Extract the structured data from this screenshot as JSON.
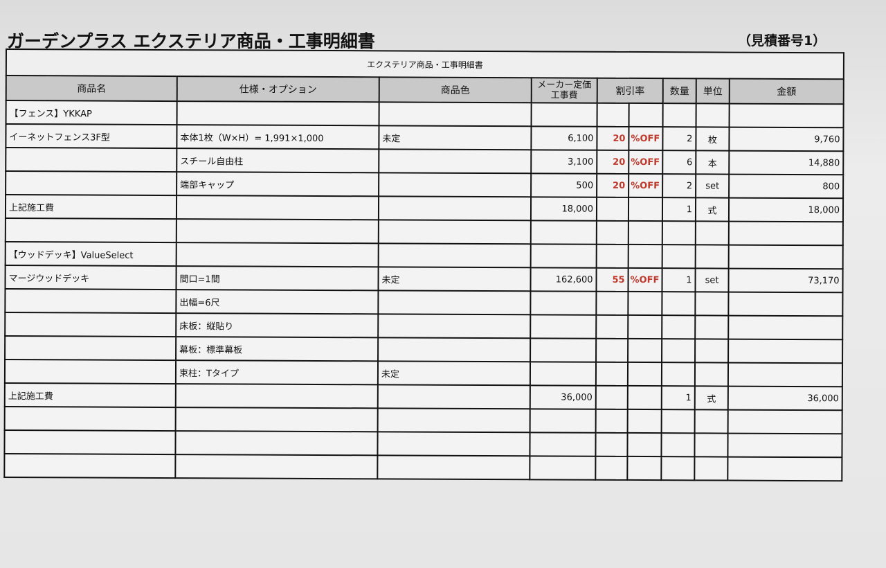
{
  "title": "ガーデンプラス エクステリア商品・工事明細書",
  "estimate_number": "（見積番号1）",
  "table": {
    "caption": "エクステリア商品・工事明細書",
    "headers": {
      "name": "商品名",
      "spec": "仕様・オプション",
      "color": "商品色",
      "price_line1": "メーカー定価",
      "price_line2": "工事費",
      "discount": "割引率",
      "qty": "数量",
      "unit": "単位",
      "amount": "金額"
    },
    "rows": [
      {
        "name": "【フェンス】YKKAP",
        "spec": "",
        "color": "",
        "price": "",
        "disc": "",
        "off": "",
        "qty": "",
        "unit": "",
        "amount": ""
      },
      {
        "name": "イーネットフェンス3F型",
        "spec": "本体1枚（W×H）= 1,991×1,000",
        "color": "未定",
        "price": "6,100",
        "disc": "20",
        "off": "%OFF",
        "qty": "2",
        "unit": "枚",
        "amount": "9,760"
      },
      {
        "name": "",
        "spec": "スチール自由柱",
        "color": "",
        "price": "3,100",
        "disc": "20",
        "off": "%OFF",
        "qty": "6",
        "unit": "本",
        "amount": "14,880"
      },
      {
        "name": "",
        "spec": "端部キャップ",
        "color": "",
        "price": "500",
        "disc": "20",
        "off": "%OFF",
        "qty": "2",
        "unit": "set",
        "amount": "800"
      },
      {
        "name": "上記施工費",
        "spec": "",
        "color": "",
        "price": "18,000",
        "disc": "",
        "off": "",
        "qty": "1",
        "unit": "式",
        "amount": "18,000"
      },
      {
        "name": "",
        "spec": "",
        "color": "",
        "price": "",
        "disc": "",
        "off": "",
        "qty": "",
        "unit": "",
        "amount": ""
      },
      {
        "name": "【ウッドデッキ】ValueSelect",
        "spec": "",
        "color": "",
        "price": "",
        "disc": "",
        "off": "",
        "qty": "",
        "unit": "",
        "amount": ""
      },
      {
        "name": "マージウッドデッキ",
        "spec": "間口=1間",
        "color": "未定",
        "price": "162,600",
        "disc": "55",
        "off": "%OFF",
        "qty": "1",
        "unit": "set",
        "amount": "73,170"
      },
      {
        "name": "",
        "spec": "出幅=6尺",
        "color": "",
        "price": "",
        "disc": "",
        "off": "",
        "qty": "",
        "unit": "",
        "amount": ""
      },
      {
        "name": "",
        "spec": "床板：縦貼り",
        "color": "",
        "price": "",
        "disc": "",
        "off": "",
        "qty": "",
        "unit": "",
        "amount": ""
      },
      {
        "name": "",
        "spec": "幕板：標準幕板",
        "color": "",
        "price": "",
        "disc": "",
        "off": "",
        "qty": "",
        "unit": "",
        "amount": ""
      },
      {
        "name": "",
        "spec": "束柱：Tタイプ",
        "color": "未定",
        "price": "",
        "disc": "",
        "off": "",
        "qty": "",
        "unit": "",
        "amount": ""
      },
      {
        "name": "上記施工費",
        "spec": "",
        "color": "",
        "price": "36,000",
        "disc": "",
        "off": "",
        "qty": "1",
        "unit": "式",
        "amount": "36,000"
      },
      {
        "name": "",
        "spec": "",
        "color": "",
        "price": "",
        "disc": "",
        "off": "",
        "qty": "",
        "unit": "",
        "amount": ""
      },
      {
        "name": "",
        "spec": "",
        "color": "",
        "price": "",
        "disc": "",
        "off": "",
        "qty": "",
        "unit": "",
        "amount": ""
      },
      {
        "name": "",
        "spec": "",
        "color": "",
        "price": "",
        "disc": "",
        "off": "",
        "qty": "",
        "unit": "",
        "amount": ""
      }
    ]
  }
}
